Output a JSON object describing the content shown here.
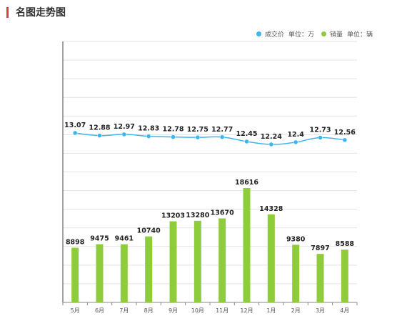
{
  "header": {
    "title": "名图走势图"
  },
  "legend": [
    {
      "name": "成交价",
      "unit": "单位：万",
      "color": "#3cb6ee"
    },
    {
      "name": "销量",
      "unit": "单位：辆",
      "color": "#8fcc3c"
    }
  ],
  "chart_data": {
    "type": "bar",
    "categories": [
      "5月",
      "6月",
      "7月",
      "8月",
      "9月",
      "10月",
      "11月",
      "12月",
      "1月",
      "2月",
      "3月",
      "4月"
    ],
    "series": [
      {
        "name": "成交价",
        "type": "line",
        "unit": "单位：万",
        "color": "#3cb6ee",
        "values": [
          13.07,
          12.88,
          12.97,
          12.83,
          12.78,
          12.75,
          12.77,
          12.45,
          12.24,
          12.4,
          12.73,
          12.56
        ]
      },
      {
        "name": "销量",
        "type": "bar",
        "unit": "单位：辆",
        "color": "#8fcc3c",
        "values": [
          8898,
          9475,
          9461,
          10740,
          13203,
          13280,
          13670,
          18616,
          14328,
          9380,
          7897,
          8588
        ]
      }
    ],
    "grid": true,
    "legend_position": "top-right"
  }
}
